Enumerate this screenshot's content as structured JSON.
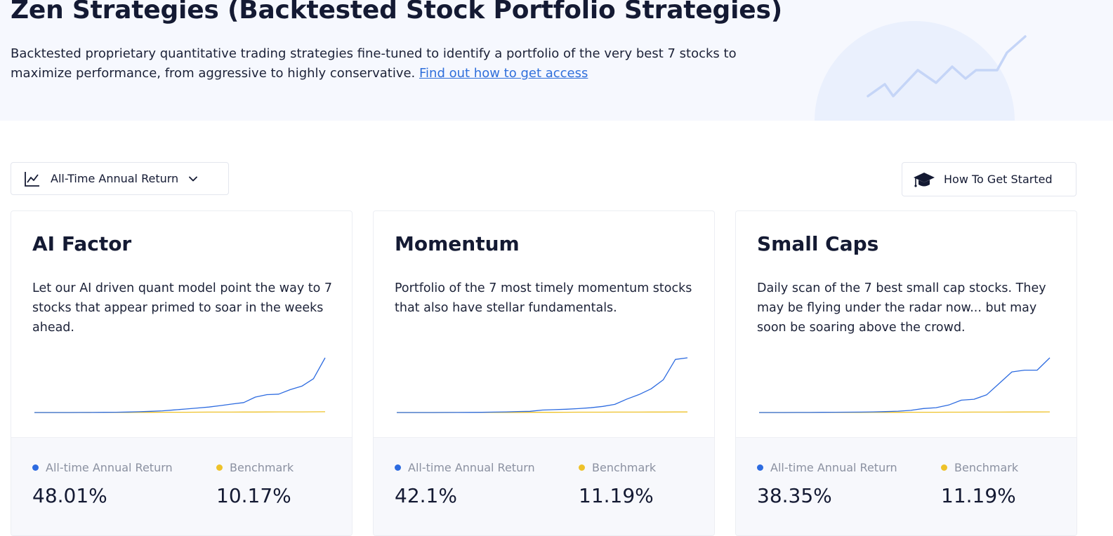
{
  "hero": {
    "title": "Zen Strategies (Backtested Stock Portfolio Strategies)",
    "description": "Backtested proprietary quantitative trading strategies fine-tuned to identify a portfolio of the very best 7 stocks to maximize performance, from aggressive to highly conservative.",
    "link_text": "Find out how to get access",
    "decoration_icon": "rising-sparkline"
  },
  "toolbar": {
    "metric_select": {
      "icon": "line-chart-icon",
      "selected": "All-Time Annual Return"
    },
    "get_started": {
      "icon": "graduation-cap-icon",
      "label": "How To Get Started"
    }
  },
  "colors": {
    "strategy": "#2d6be0",
    "benchmark": "#eec22a",
    "link": "#2f6fdb",
    "text": "#141a33"
  },
  "cards": [
    {
      "title": "AI Factor",
      "description": "Let our AI driven quant model point the way to 7 stocks that appear primed to soar in the weeks ahead.",
      "legend_strategy": "All-time Annual Return",
      "legend_benchmark": "Benchmark",
      "strategy_value": "48.01%",
      "benchmark_value": "10.17%",
      "chart_data": {
        "type": "line",
        "series": [
          {
            "values": [
              0,
              0,
              0,
              0,
              0.05,
              0.1,
              0.2,
              0.3,
              0.5,
              0.8,
              1.2,
              1.7,
              2.6,
              3.5,
              4.5,
              5.5,
              7,
              8.5,
              10,
              15.5,
              18,
              18.5,
              23,
              26.5,
              34,
              55
            ]
          },
          {
            "values": [
              0,
              0,
              0,
              0,
              0,
              0.05,
              0.1,
              0.1,
              0.15,
              0.2,
              0.2,
              0.25,
              0.3,
              0.3,
              0.35,
              0.4,
              0.4,
              0.45,
              0.5,
              0.5,
              0.55,
              0.6,
              0.6,
              0.65,
              0.7,
              0.75
            ]
          }
        ]
      }
    },
    {
      "title": "Momentum",
      "description": "Portfolio of the 7 most timely momentum stocks that also have stellar fundamentals.",
      "legend_strategy": "All-time Annual Return",
      "legend_benchmark": "Benchmark",
      "strategy_value": "42.1%",
      "benchmark_value": "11.19%",
      "chart_data": {
        "type": "line",
        "series": [
          {
            "values": [
              0,
              0,
              0,
              0,
              0.05,
              0.1,
              0.2,
              0.3,
              0.5,
              0.8,
              1.2,
              1.5,
              3,
              3.5,
              4,
              4.8,
              5.8,
              7.5,
              10,
              16.5,
              22,
              29,
              40,
              65,
              67
            ]
          },
          {
            "values": [
              0,
              0,
              0,
              0,
              0,
              0.05,
              0.1,
              0.1,
              0.15,
              0.2,
              0.2,
              0.25,
              0.3,
              0.3,
              0.35,
              0.4,
              0.4,
              0.45,
              0.5,
              0.5,
              0.55,
              0.6,
              0.6,
              0.65,
              0.7
            ]
          }
        ]
      }
    },
    {
      "title": "Small Caps",
      "description": "Daily scan of the 7 best small cap stocks. They may be flying under the radar now... but may soon be soaring above the crowd.",
      "legend_strategy": "All-time Annual Return",
      "legend_benchmark": "Benchmark",
      "strategy_value": "38.35%",
      "benchmark_value": "11.19%",
      "chart_data": {
        "type": "line",
        "series": [
          {
            "values": [
              0,
              0,
              0,
              0.05,
              0.1,
              0.2,
              0.3,
              0.4,
              0.5,
              0.7,
              1,
              1.5,
              2.5,
              4.5,
              5.5,
              8.5,
              14,
              15,
              20,
              33,
              46,
              48,
              48,
              62
            ]
          },
          {
            "values": [
              0,
              0,
              0,
              0,
              0,
              0.05,
              0.1,
              0.1,
              0.15,
              0.2,
              0.2,
              0.25,
              0.3,
              0.3,
              0.35,
              0.4,
              0.4,
              0.45,
              0.5,
              0.5,
              0.55,
              0.6,
              0.65,
              0.7
            ]
          }
        ]
      }
    }
  ]
}
